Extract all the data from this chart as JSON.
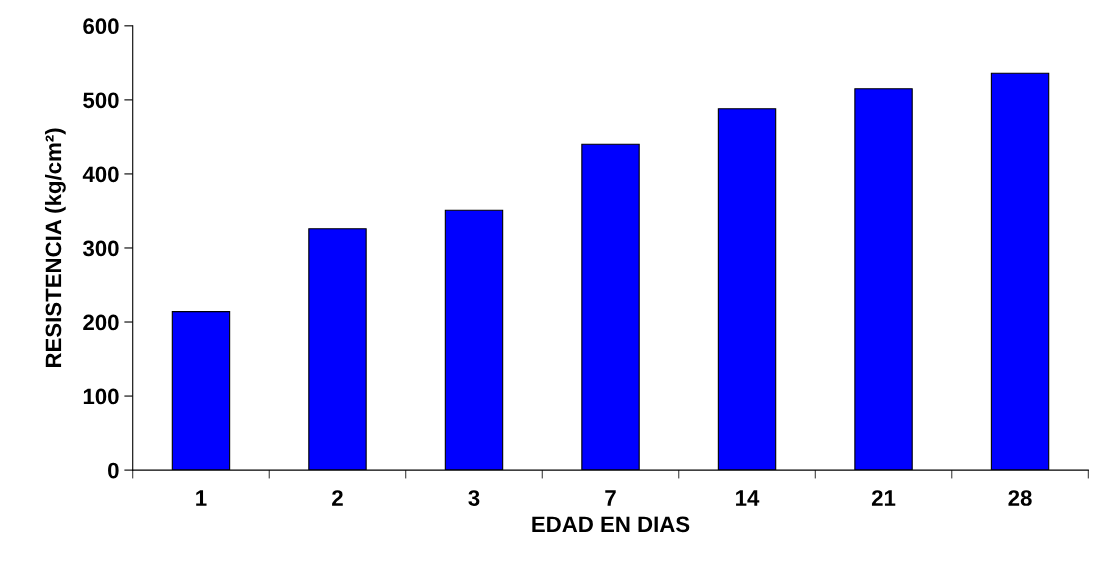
{
  "chart_data": {
    "type": "bar",
    "xlabel": "EDAD EN DIAS",
    "ylabel": "RESISTENCIA (kg/cm²)",
    "categories": [
      "1",
      "2",
      "3",
      "7",
      "14",
      "21",
      "28"
    ],
    "values": [
      214,
      326,
      351,
      440,
      488,
      515,
      536
    ],
    "color": "#0000ff",
    "ylim": [
      0,
      600
    ],
    "yticks": [
      0,
      100,
      200,
      300,
      400,
      500,
      600
    ],
    "grid": false
  }
}
